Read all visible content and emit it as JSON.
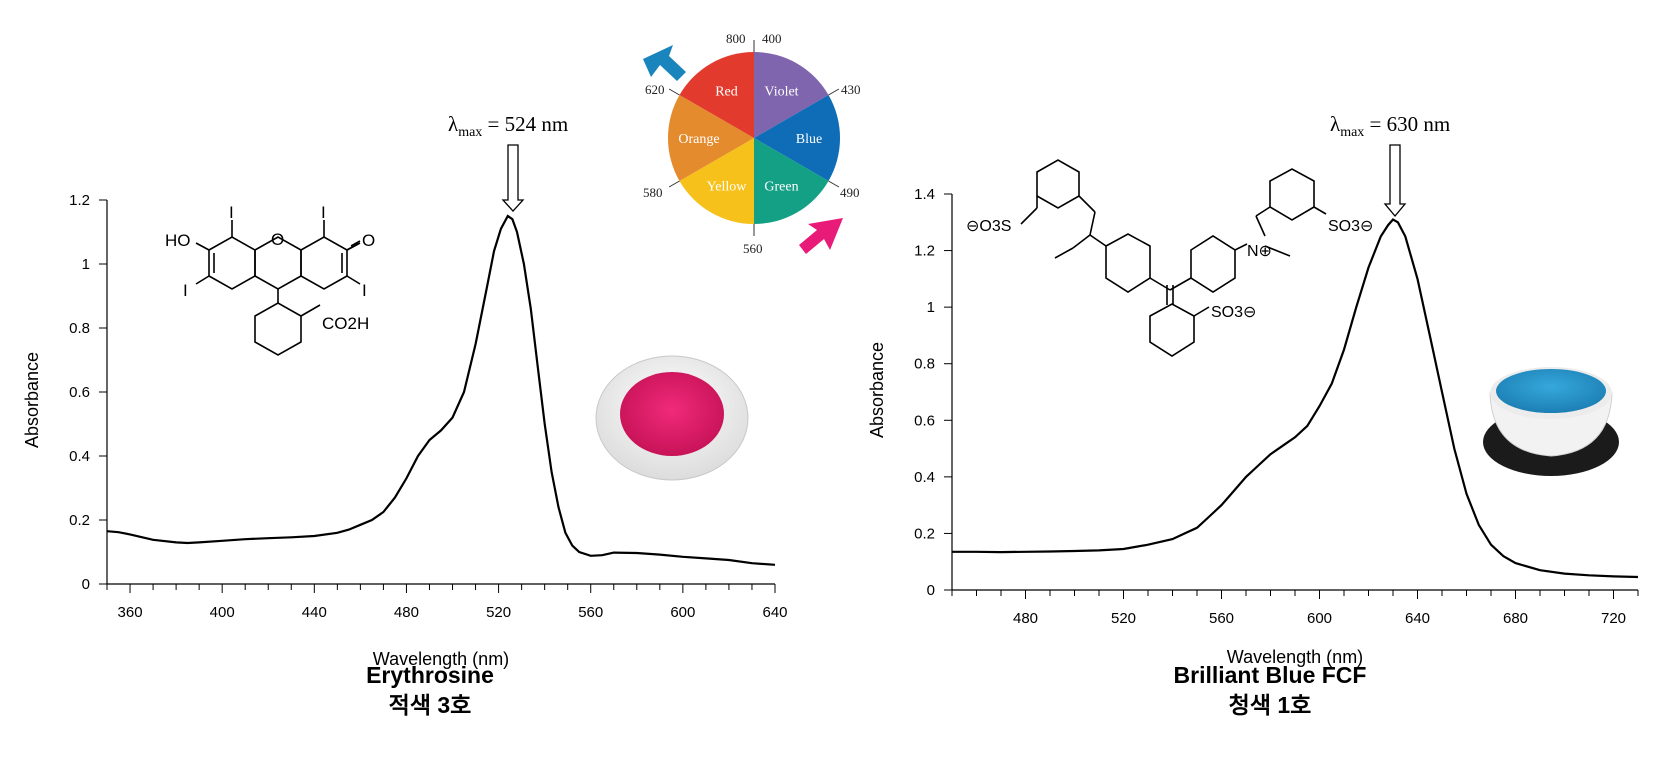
{
  "charts": [
    {
      "compound_name": "Erythrosine",
      "compound_name_ko": "적색 3호",
      "lambda_label": "λmax = 524 nm",
      "lambda_sym": "λ",
      "lambda_sub": "max",
      "lambda_rest": " = 524 nm",
      "powder_color": "#e5206e"
    },
    {
      "compound_name": "Brilliant Blue FCF",
      "compound_name_ko": "청색 1호",
      "lambda_label": "λmax = 630 nm",
      "lambda_sym": "λ",
      "lambda_sub": "max",
      "lambda_rest": " = 630 nm",
      "powder_color": "#2a9ad0"
    }
  ],
  "structure_labels": {
    "erythrosine": [
      "HO",
      "O",
      "O",
      "I",
      "I",
      "I",
      "I",
      "CO2H"
    ],
    "brilliant_blue": [
      "⊖O3S",
      "SO3⊖",
      "N⊕",
      "SO3⊖"
    ]
  },
  "color_wheel": {
    "segments": [
      {
        "name": "Violet",
        "color": "#7f65ad"
      },
      {
        "name": "Blue",
        "color": "#0f6cb6"
      },
      {
        "name": "Green",
        "color": "#13a085"
      },
      {
        "name": "Yellow",
        "color": "#f6c11a"
      },
      {
        "name": "Orange",
        "color": "#e48b2d"
      },
      {
        "name": "Red",
        "color": "#e23b2e"
      }
    ],
    "wavelength_labels": [
      "800",
      "400",
      "430",
      "490",
      "560",
      "580",
      "620"
    ],
    "arrow_colors": {
      "blue_arrow": "#1a85bd",
      "pink_arrow": "#e81b78"
    }
  },
  "chart_data": [
    {
      "type": "line",
      "title": "",
      "xlabel": "Wavelength (nm)",
      "ylabel": "Absorbance",
      "xlim": [
        350,
        640
      ],
      "ylim": [
        0,
        1.2
      ],
      "xticks": [
        360,
        400,
        440,
        480,
        520,
        560,
        600,
        640
      ],
      "yticks": [
        0,
        0.2,
        0.4,
        0.6,
        0.8,
        1,
        1.2
      ],
      "ytick_labels": [
        "0",
        "0.2",
        "0.4",
        "0.6",
        "0.8",
        "1",
        "1.2"
      ],
      "x": [
        350,
        355,
        360,
        370,
        380,
        385,
        390,
        400,
        410,
        420,
        430,
        440,
        450,
        455,
        460,
        465,
        470,
        475,
        480,
        485,
        490,
        495,
        500,
        505,
        510,
        515,
        518,
        521,
        524,
        526,
        528,
        531,
        534,
        537,
        540,
        543,
        546,
        549,
        552,
        555,
        560,
        565,
        570,
        580,
        590,
        600,
        610,
        620,
        630,
        640
      ],
      "y": [
        0.165,
        0.162,
        0.155,
        0.138,
        0.13,
        0.128,
        0.13,
        0.135,
        0.14,
        0.143,
        0.146,
        0.15,
        0.16,
        0.17,
        0.185,
        0.2,
        0.225,
        0.27,
        0.33,
        0.4,
        0.45,
        0.48,
        0.52,
        0.6,
        0.75,
        0.93,
        1.04,
        1.11,
        1.15,
        1.14,
        1.1,
        1.0,
        0.86,
        0.68,
        0.5,
        0.35,
        0.24,
        0.16,
        0.12,
        0.1,
        0.088,
        0.09,
        0.098,
        0.097,
        0.092,
        0.085,
        0.08,
        0.075,
        0.065,
        0.06
      ]
    },
    {
      "type": "line",
      "title": "",
      "xlabel": "Wavelength (nm)",
      "ylabel": "Absorbance",
      "xlim": [
        450,
        730
      ],
      "ylim": [
        0,
        1.4
      ],
      "xticks": [
        480,
        520,
        560,
        600,
        640,
        680,
        720
      ],
      "yticks": [
        0,
        0.2,
        0.4,
        0.6,
        0.8,
        1,
        1.2,
        1.4
      ],
      "ytick_labels": [
        "0",
        "0.2",
        "0.4",
        "0.6",
        "0.8",
        "1",
        "1.2",
        "1.4"
      ],
      "x": [
        450,
        460,
        470,
        480,
        490,
        500,
        510,
        520,
        530,
        540,
        545,
        550,
        555,
        560,
        565,
        570,
        575,
        580,
        585,
        590,
        595,
        600,
        605,
        610,
        615,
        620,
        625,
        628,
        630,
        632,
        635,
        640,
        645,
        650,
        655,
        660,
        665,
        670,
        675,
        680,
        690,
        700,
        710,
        720,
        730
      ],
      "y": [
        0.135,
        0.135,
        0.134,
        0.135,
        0.136,
        0.138,
        0.14,
        0.145,
        0.16,
        0.18,
        0.2,
        0.22,
        0.26,
        0.3,
        0.35,
        0.4,
        0.44,
        0.48,
        0.51,
        0.54,
        0.58,
        0.65,
        0.73,
        0.85,
        1.0,
        1.14,
        1.25,
        1.29,
        1.31,
        1.3,
        1.25,
        1.1,
        0.9,
        0.7,
        0.5,
        0.34,
        0.23,
        0.16,
        0.12,
        0.095,
        0.07,
        0.058,
        0.052,
        0.048,
        0.046
      ]
    }
  ]
}
